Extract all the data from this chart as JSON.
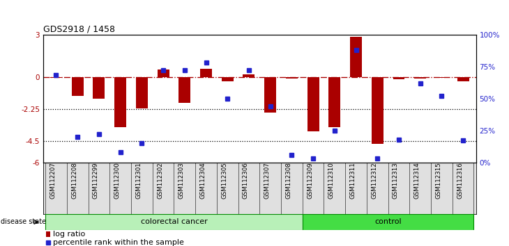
{
  "title": "GDS2918 / 1458",
  "samples": [
    "GSM112207",
    "GSM112208",
    "GSM112299",
    "GSM112300",
    "GSM112301",
    "GSM112302",
    "GSM112303",
    "GSM112304",
    "GSM112305",
    "GSM112306",
    "GSM112307",
    "GSM112308",
    "GSM112309",
    "GSM112310",
    "GSM112311",
    "GSM112312",
    "GSM112313",
    "GSM112314",
    "GSM112315",
    "GSM112316"
  ],
  "log_ratio": [
    -0.05,
    -1.3,
    -1.5,
    -3.5,
    -2.2,
    0.55,
    -1.8,
    0.6,
    -0.3,
    0.2,
    -2.5,
    -0.1,
    -3.8,
    -3.5,
    2.85,
    -4.7,
    -0.15,
    -0.1,
    -0.05,
    -0.3
  ],
  "percentile": [
    68,
    20,
    22,
    8,
    15,
    72,
    72,
    78,
    50,
    72,
    44,
    6,
    3,
    25,
    88,
    3,
    18,
    62,
    52,
    17
  ],
  "colorectal_count": 12,
  "bar_color": "#aa0000",
  "dot_color": "#2222cc",
  "ylim": [
    -6,
    3
  ],
  "yticks": [
    3,
    0,
    -2.25,
    -4.5,
    -6
  ],
  "ytick_labels": [
    "3",
    "0",
    "-2.25",
    "-4.5",
    "-6"
  ],
  "hlines": [
    -2.25,
    -4.5
  ],
  "right_yticks": [
    0,
    25,
    50,
    75,
    100
  ],
  "right_ytick_labels": [
    "0%",
    "25%",
    "50%",
    "75%",
    "100%"
  ],
  "colorectal_color": "#b8f0b8",
  "control_color": "#44dd44",
  "group_label_colorectal": "colorectal cancer",
  "group_label_control": "control",
  "disease_state_label": "disease state",
  "legend_bar_label": "log ratio",
  "legend_dot_label": "percentile rank within the sample"
}
